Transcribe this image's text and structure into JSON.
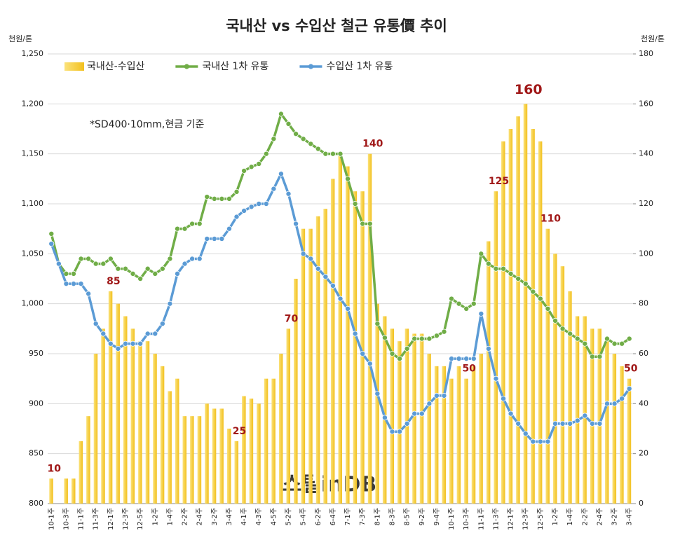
{
  "chart_data": {
    "type": "bar-line",
    "title": "국내산 vs 수입산 철근 유통價 추이",
    "y_label": "천원/톤",
    "y2_label": "천원/톤",
    "note": "*SD400·10mm,현금 기준",
    "watermark": "스틸inDB",
    "categories": [
      "10-1주",
      null,
      "10-3주",
      null,
      "11-1주",
      null,
      "11-3주",
      null,
      "12-1주",
      null,
      "12-3주",
      null,
      "12-5주",
      null,
      "1-2주",
      null,
      "1-4주",
      null,
      "2-2주",
      null,
      "2-4주",
      null,
      "3-2주",
      null,
      "3-4주",
      null,
      "4-1주",
      null,
      "4-3주",
      null,
      "4-5주",
      null,
      "5-2주",
      null,
      "5-4주",
      null,
      "6-2주",
      null,
      "6-4주",
      null,
      "7-1주",
      null,
      "7-3주",
      null,
      "8-1주",
      null,
      "8-3주",
      null,
      "8-5주",
      null,
      "9-2주",
      null,
      "9-4주",
      null,
      "10-1주",
      null,
      "10-3주",
      null,
      "11-1주",
      null,
      "11-3주",
      null,
      "12-1주",
      null,
      "12-3주",
      null,
      "12-5주",
      null,
      "1-2주",
      null,
      "1-4주",
      null,
      "2-2주",
      null,
      "2-4주",
      null,
      "3-2주",
      null,
      "3-4주"
    ],
    "series": [
      {
        "name": "국내산-수입산",
        "kind": "bar",
        "axis": "y2",
        "color": "#f2c01e",
        "values": [
          10,
          0,
          10,
          10,
          25,
          35,
          60,
          70,
          85,
          80,
          75,
          70,
          65,
          65,
          60,
          55,
          45,
          50,
          35,
          35,
          35,
          40,
          38,
          38,
          30,
          25,
          43,
          42,
          40,
          50,
          50,
          60,
          70,
          90,
          110,
          110,
          115,
          118,
          130,
          140,
          135,
          125,
          125,
          140,
          80,
          75,
          70,
          65,
          70,
          68,
          68,
          60,
          55,
          55,
          50,
          55,
          50,
          55,
          60,
          105,
          125,
          145,
          150,
          155,
          160,
          150,
          145,
          110,
          100,
          95,
          85,
          75,
          75,
          70,
          70,
          65,
          60,
          55,
          50
        ],
        "value_labels": [
          "10",
          null,
          null,
          null,
          null,
          null,
          null,
          null,
          "85",
          null,
          null,
          null,
          null,
          null,
          null,
          null,
          null,
          null,
          null,
          null,
          null,
          null,
          null,
          null,
          null,
          "25",
          null,
          null,
          null,
          null,
          null,
          null,
          "70",
          null,
          null,
          null,
          null,
          null,
          null,
          null,
          null,
          null,
          null,
          "140",
          null,
          null,
          null,
          null,
          null,
          null,
          null,
          null,
          null,
          null,
          null,
          null,
          "50",
          null,
          null,
          null,
          "125",
          null,
          null,
          null,
          "160",
          null,
          null,
          "110",
          null,
          null,
          null,
          null,
          null,
          null,
          null,
          null,
          null,
          null,
          "50"
        ]
      },
      {
        "name": "국내산 1차 유통",
        "kind": "line",
        "color": "#70ad47",
        "values": [
          1070,
          1040,
          1030,
          1030,
          1045,
          1045,
          1040,
          1040,
          1045,
          1035,
          1035,
          1030,
          1025,
          1035,
          1030,
          1035,
          1045,
          1075,
          1075,
          1080,
          1080,
          1107,
          1105,
          1105,
          1105,
          1112,
          1133,
          1137,
          1140,
          1150,
          1165,
          1190,
          1180,
          1170,
          1165,
          1160,
          1155,
          1150,
          1150,
          1150,
          1125,
          1100,
          1080,
          1080,
          980,
          966,
          950,
          945,
          955,
          965,
          965,
          965,
          968,
          972,
          1005,
          1000,
          995,
          1000,
          1050,
          1040,
          1035,
          1035,
          1030,
          1025,
          1020,
          1012,
          1005,
          995,
          983,
          975,
          970,
          965,
          960,
          947,
          947,
          965,
          960,
          960,
          965
        ]
      },
      {
        "name": "수입산 1차 유통",
        "kind": "line",
        "color": "#5b9bd5",
        "values": [
          1060,
          1040,
          1020,
          1020,
          1020,
          1010,
          980,
          970,
          960,
          955,
          960,
          960,
          960,
          970,
          970,
          980,
          1000,
          1030,
          1040,
          1045,
          1045,
          1065,
          1065,
          1065,
          1075,
          1087,
          1093,
          1097,
          1100,
          1100,
          1115,
          1130,
          1110,
          1080,
          1050,
          1045,
          1035,
          1027,
          1018,
          1005,
          995,
          970,
          950,
          940,
          910,
          886,
          872,
          872,
          880,
          890,
          890,
          900,
          908,
          908,
          945,
          945,
          945,
          945,
          990,
          955,
          925,
          905,
          890,
          880,
          870,
          862,
          862,
          862,
          880,
          880,
          880,
          883,
          888,
          880,
          880,
          900,
          900,
          905,
          915
        ]
      }
    ],
    "ylim": [
      800,
      1250
    ],
    "yticks": [
      800,
      850,
      900,
      950,
      {
        "value": 1000,
        "label": "1,000"
      },
      {
        "value": 1050,
        "label": "1,050"
      },
      {
        "value": 1100,
        "label": "1,100"
      },
      {
        "value": 1150,
        "label": "1,150"
      },
      {
        "value": 1200,
        "label": "1,200"
      },
      {
        "value": 1250,
        "label": "1,250"
      }
    ],
    "y2lim": [
      0,
      180
    ],
    "y2ticks": [
      0,
      20,
      40,
      60,
      80,
      100,
      120,
      140,
      160,
      180
    ],
    "grid": true
  }
}
